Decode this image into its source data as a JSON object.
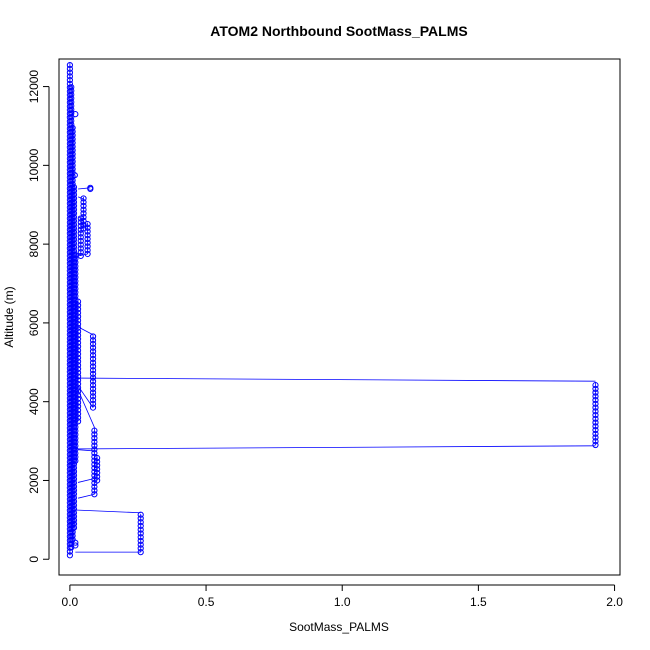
{
  "chart_data": {
    "type": "scatter",
    "title": "ATOM2 Northbound SootMass_PALMS",
    "xlabel": "SootMass_PALMS",
    "ylabel": "Altitude (m)",
    "xlim": [
      -0.04,
      2.02
    ],
    "ylim": [
      -400,
      12700
    ],
    "xticks": [
      0.0,
      0.5,
      1.0,
      1.5,
      2.0
    ],
    "xtick_labels": [
      "0.0",
      "0.5",
      "1.0",
      "1.5",
      "2.0"
    ],
    "yticks": [
      0,
      2000,
      4000,
      6000,
      8000,
      10000,
      12000
    ],
    "ytick_labels": [
      "0",
      "2000",
      "4000",
      "6000",
      "8000",
      "10000",
      "12000"
    ],
    "grid": false,
    "colors": {
      "series": "#0000ff",
      "axis": "#000000"
    },
    "series": [
      {
        "marker": "open-circle",
        "connected": true,
        "groups": [
          {
            "x": 0.0,
            "y_from": 100,
            "y_to": 12600
          },
          {
            "x": 0.005,
            "y_from": 300,
            "y_to": 12000
          },
          {
            "x": 0.01,
            "y_from": 500,
            "y_to": 11000
          },
          {
            "x": 0.015,
            "y_from": 800,
            "y_to": 9500
          },
          {
            "x": 0.02,
            "y_from": 2500,
            "y_to": 7800
          },
          {
            "x": 0.03,
            "y_from": 3500,
            "y_to": 6600
          },
          {
            "x": 0.04,
            "y_from": 7700,
            "y_to": 8700
          },
          {
            "x": 0.05,
            "y_from": 8400,
            "y_to": 9200
          },
          {
            "x": 0.065,
            "y_from": 7750,
            "y_to": 8550
          },
          {
            "x": 0.085,
            "y_from": 3850,
            "y_to": 5700
          },
          {
            "x": 0.09,
            "y_from": 1650,
            "y_to": 3350
          },
          {
            "x": 0.1,
            "y_from": 2000,
            "y_to": 2600
          },
          {
            "x": 0.26,
            "y_from": 180,
            "y_to": 1150
          },
          {
            "x": 1.93,
            "y_from": 2900,
            "y_to": 4500
          }
        ],
        "points": [
          {
            "x": 0.02,
            "y": 11300
          },
          {
            "x": 0.018,
            "y": 9750
          },
          {
            "x": 0.075,
            "y": 9430
          },
          {
            "x": 0.075,
            "y": 9400
          },
          {
            "x": 0.02,
            "y": 350
          },
          {
            "x": 0.02,
            "y": 420
          }
        ],
        "connections": [
          {
            "x1": 0.02,
            "y1": 4600,
            "x2": 1.93,
            "y2": 4520
          },
          {
            "x1": 0.02,
            "y1": 2800,
            "x2": 1.93,
            "y2": 2880
          },
          {
            "x1": 0.03,
            "y1": 2780,
            "x2": 0.09,
            "y2": 2750
          },
          {
            "x1": 0.02,
            "y1": 1250,
            "x2": 0.26,
            "y2": 1180
          },
          {
            "x1": 0.02,
            "y1": 180,
            "x2": 0.26,
            "y2": 180
          },
          {
            "x1": 0.03,
            "y1": 1950,
            "x2": 0.09,
            "y2": 2050
          },
          {
            "x1": 0.03,
            "y1": 1550,
            "x2": 0.09,
            "y2": 1650
          },
          {
            "x1": 0.03,
            "y1": 5900,
            "x2": 0.085,
            "y2": 5700
          },
          {
            "x1": 0.03,
            "y1": 4400,
            "x2": 0.085,
            "y2": 3850
          },
          {
            "x1": 0.03,
            "y1": 4300,
            "x2": 0.09,
            "y2": 3350
          },
          {
            "x1": 0.03,
            "y1": 7700,
            "x2": 0.065,
            "y2": 7750
          },
          {
            "x1": 0.03,
            "y1": 9400,
            "x2": 0.075,
            "y2": 9430
          },
          {
            "x1": 0.03,
            "y1": 9200,
            "x2": 0.05,
            "y2": 9150
          },
          {
            "x1": 0.03,
            "y1": 8700,
            "x2": 0.04,
            "y2": 8650
          }
        ]
      }
    ]
  }
}
